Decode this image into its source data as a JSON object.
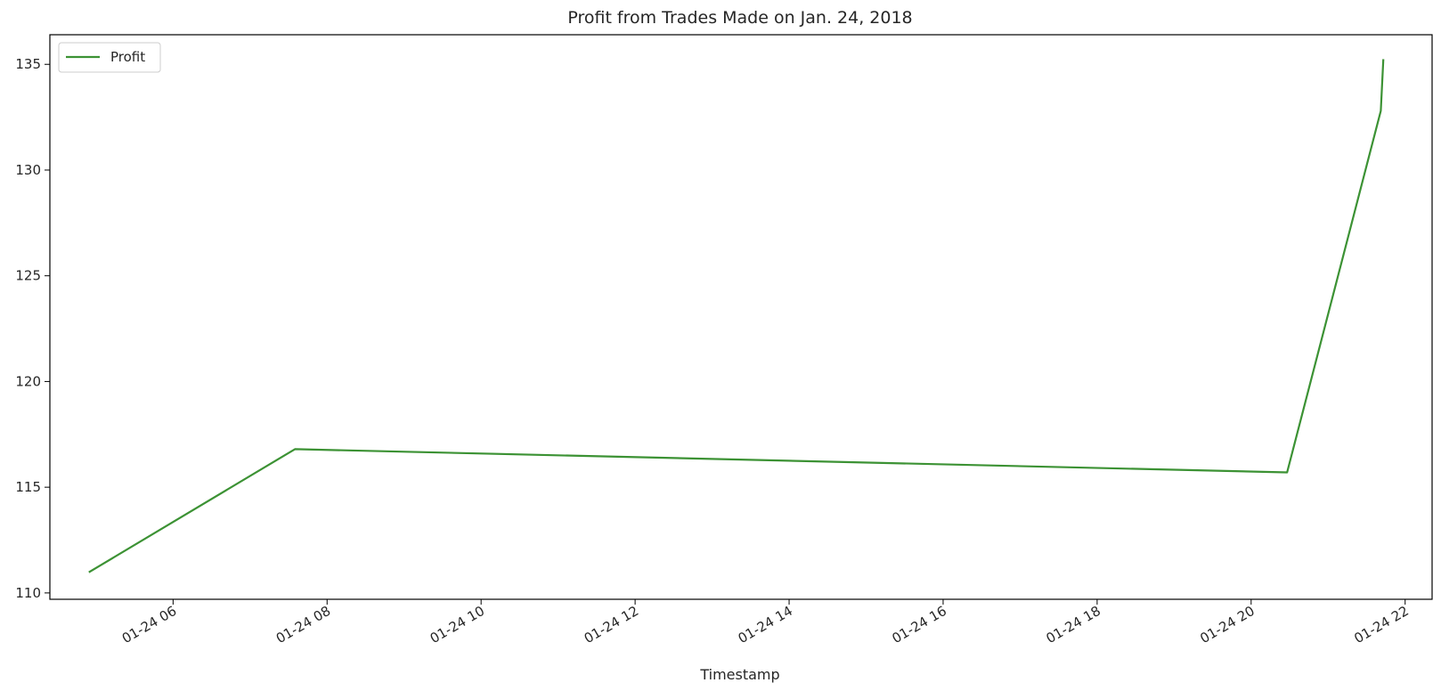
{
  "chart_data": {
    "type": "line",
    "title": "Profit from Trades Made on Jan. 24, 2018",
    "xlabel": "Timestamp",
    "ylabel": "",
    "x_axis_type": "datetime",
    "xlim": [
      "2018-01-24 04:24",
      "2018-01-24 22:21"
    ],
    "ylim": [
      109.7,
      136.4
    ],
    "yticks": [
      110,
      115,
      120,
      125,
      130,
      135
    ],
    "xticks": [
      {
        "value": "2018-01-24 06:00",
        "label": "01-24 06"
      },
      {
        "value": "2018-01-24 08:00",
        "label": "01-24 08"
      },
      {
        "value": "2018-01-24 10:00",
        "label": "01-24 10"
      },
      {
        "value": "2018-01-24 12:00",
        "label": "01-24 12"
      },
      {
        "value": "2018-01-24 14:00",
        "label": "01-24 14"
      },
      {
        "value": "2018-01-24 16:00",
        "label": "01-24 16"
      },
      {
        "value": "2018-01-24 18:00",
        "label": "01-24 18"
      },
      {
        "value": "2018-01-24 20:00",
        "label": "01-24 20"
      },
      {
        "value": "2018-01-24 22:00",
        "label": "01-24 22"
      }
    ],
    "grid": false,
    "legend_position": "top-left",
    "series": [
      {
        "name": "Profit",
        "color": "#3c9234",
        "points": [
          {
            "x": "2018-01-24 04:55",
            "y": 111.0
          },
          {
            "x": "2018-01-24 07:35",
            "y": 116.8
          },
          {
            "x": "2018-01-24 20:28",
            "y": 115.7
          },
          {
            "x": "2018-01-24 21:41",
            "y": 132.8
          },
          {
            "x": "2018-01-24 21:43",
            "y": 135.2
          }
        ]
      }
    ]
  }
}
